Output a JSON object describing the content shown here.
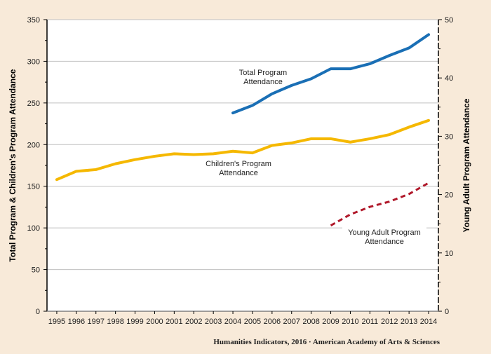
{
  "chart_data": {
    "type": "line",
    "title": "",
    "categories": [
      "1995",
      "1996",
      "1997",
      "1998",
      "1999",
      "2000",
      "2001",
      "2002",
      "2003",
      "2004",
      "2005",
      "2006",
      "2007",
      "2008",
      "2009",
      "2010",
      "2011",
      "2012",
      "2013",
      "2014"
    ],
    "xlabel": "",
    "ylabel": "Total Program & Children's Program Attendance",
    "y2label": "Young Adult Program Attendance",
    "ylim": [
      0,
      350
    ],
    "y2lim": [
      0,
      50
    ],
    "yticks": [
      0,
      50,
      100,
      150,
      200,
      250,
      300,
      350
    ],
    "y2ticks": [
      0,
      10,
      20,
      30,
      40,
      50
    ],
    "grid": true,
    "series": [
      {
        "name": "Total Program Attendance",
        "axis": "left",
        "color": "#1a6fb5",
        "style": "solid",
        "label_lines": [
          "Total Program",
          "Attendance"
        ],
        "values": [
          null,
          null,
          null,
          null,
          null,
          null,
          null,
          null,
          null,
          238,
          247,
          261,
          271,
          279,
          291,
          291,
          297,
          307,
          316,
          332
        ]
      },
      {
        "name": "Children's Program Attendance",
        "axis": "left",
        "color": "#f5b800",
        "style": "solid",
        "label_lines": [
          "Children's  Program",
          "Attendance"
        ],
        "values": [
          158,
          168,
          170,
          177,
          182,
          186,
          189,
          188,
          189,
          192,
          190,
          199,
          202,
          207,
          207,
          203,
          207,
          212,
          221,
          229
        ]
      },
      {
        "name": "Young Adult Program Attendance",
        "axis": "right",
        "color": "#b0182a",
        "style": "dashed",
        "label_lines": [
          "Young Adult Program",
          "Attendance"
        ],
        "values": [
          null,
          null,
          null,
          null,
          null,
          null,
          null,
          null,
          null,
          null,
          null,
          null,
          null,
          null,
          14.7,
          16.6,
          17.9,
          18.8,
          20.1,
          22.0
        ]
      }
    ]
  },
  "source": "Humanities  Indicators, 2016  · American Academy  of Arts & Sciences"
}
